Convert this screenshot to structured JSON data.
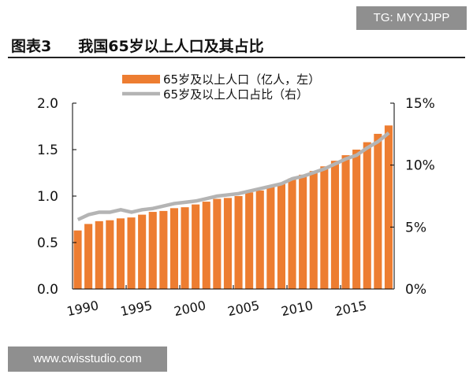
{
  "watermark": "TG: MYYJJPP",
  "title": {
    "label": "图表3",
    "text": "我国65岁以上人口及其占比"
  },
  "site": "www.cwisstudio.com",
  "chart_data": {
    "type": "bar+line",
    "x": [
      1990,
      1991,
      1992,
      1993,
      1994,
      1995,
      1996,
      1997,
      1998,
      1999,
      2000,
      2001,
      2002,
      2003,
      2004,
      2005,
      2006,
      2007,
      2008,
      2009,
      2010,
      2011,
      2012,
      2013,
      2014,
      2015,
      2016,
      2017,
      2018,
      2019
    ],
    "xticks": [
      "1990",
      "1995",
      "2000",
      "2005",
      "2010",
      "2015"
    ],
    "series": [
      {
        "name": "65岁及以上人口（亿人，左）",
        "type": "bar",
        "axis": "left",
        "color": "#ed7d31",
        "values": [
          0.63,
          0.7,
          0.73,
          0.74,
          0.76,
          0.77,
          0.8,
          0.83,
          0.84,
          0.87,
          0.88,
          0.91,
          0.94,
          0.97,
          0.98,
          1.0,
          1.04,
          1.06,
          1.1,
          1.13,
          1.19,
          1.23,
          1.27,
          1.32,
          1.38,
          1.44,
          1.5,
          1.58,
          1.67,
          1.76
        ]
      },
      {
        "name": "65岁及以上人口占比（右）",
        "type": "line",
        "axis": "right",
        "color": "#b4b4b4",
        "values": [
          5.6,
          6.0,
          6.2,
          6.2,
          6.4,
          6.2,
          6.4,
          6.5,
          6.7,
          6.9,
          7.0,
          7.1,
          7.3,
          7.5,
          7.6,
          7.7,
          7.9,
          8.1,
          8.3,
          8.5,
          8.9,
          9.1,
          9.4,
          9.7,
          10.1,
          10.5,
          10.8,
          11.4,
          11.9,
          12.6
        ]
      }
    ],
    "ylim_left": [
      0,
      2.0
    ],
    "yticks_left": [
      "0.0",
      "0.5",
      "1.0",
      "1.5",
      "2.0"
    ],
    "ylim_right": [
      0,
      15
    ],
    "yticks_right": [
      "0%",
      "5%",
      "10%",
      "15%"
    ],
    "legend": "top-center",
    "grid": false
  }
}
